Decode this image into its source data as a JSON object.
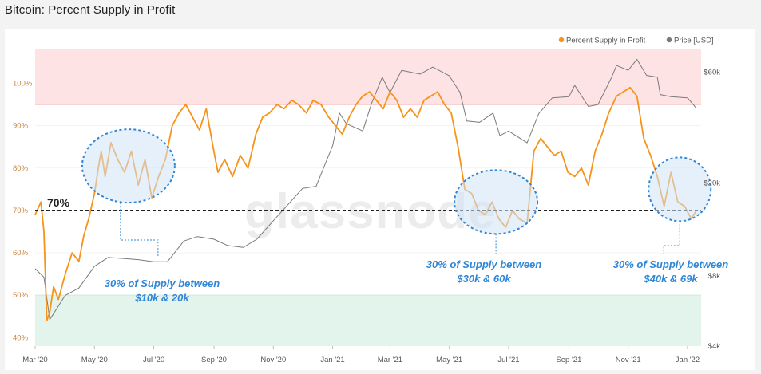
{
  "page": {
    "title": "Bitcoin: Percent Supply in Profit"
  },
  "watermark": "glassnode",
  "chart_data": {
    "type": "line",
    "x_range": [
      "2020-03-01",
      "2022-01-15"
    ],
    "x_ticks": [
      "Mar '20",
      "May '20",
      "Jul '20",
      "Sep '20",
      "Nov '20",
      "Jan '21",
      "Mar '21",
      "May '21",
      "Jul '21",
      "Sep '21",
      "Nov '21",
      "Jan '22"
    ],
    "y_left": {
      "range": [
        38,
        108
      ],
      "ticks": [
        "40%",
        "50%",
        "60%",
        "70%",
        "80%",
        "90%",
        "100%"
      ],
      "tick_values": [
        40,
        50,
        60,
        70,
        80,
        90,
        100
      ]
    },
    "y_right": {
      "scale": "log",
      "range": [
        4000,
        75000
      ],
      "ticks": [
        "$4k",
        "$8k",
        "$20k",
        "$60k"
      ],
      "tick_values": [
        4000,
        8000,
        20000,
        60000
      ]
    },
    "legend": {
      "placement": "top-right"
    },
    "series": [
      {
        "name": "Percent Supply in Profit",
        "color": "#f7931a",
        "axis": "left",
        "x": [
          "2020-03-01",
          "2020-03-07",
          "2020-03-10",
          "2020-03-13",
          "2020-03-16",
          "2020-03-20",
          "2020-03-25",
          "2020-04-01",
          "2020-04-08",
          "2020-04-15",
          "2020-04-20",
          "2020-04-25",
          "2020-05-01",
          "2020-05-05",
          "2020-05-08",
          "2020-05-12",
          "2020-05-18",
          "2020-05-25",
          "2020-06-01",
          "2020-06-08",
          "2020-06-15",
          "2020-06-22",
          "2020-06-29",
          "2020-07-06",
          "2020-07-13",
          "2020-07-20",
          "2020-07-27",
          "2020-08-03",
          "2020-08-10",
          "2020-08-17",
          "2020-08-24",
          "2020-08-31",
          "2020-09-05",
          "2020-09-12",
          "2020-09-20",
          "2020-09-28",
          "2020-10-06",
          "2020-10-14",
          "2020-10-21",
          "2020-10-28",
          "2020-11-05",
          "2020-11-12",
          "2020-11-20",
          "2020-11-27",
          "2020-12-05",
          "2020-12-12",
          "2020-12-20",
          "2020-12-28",
          "2021-01-04",
          "2021-01-11",
          "2021-01-18",
          "2021-01-25",
          "2021-02-01",
          "2021-02-08",
          "2021-02-15",
          "2021-02-22",
          "2021-03-01",
          "2021-03-08",
          "2021-03-15",
          "2021-03-22",
          "2021-03-29",
          "2021-04-05",
          "2021-04-12",
          "2021-04-19",
          "2021-04-26",
          "2021-05-03",
          "2021-05-10",
          "2021-05-17",
          "2021-05-24",
          "2021-05-31",
          "2021-06-07",
          "2021-06-14",
          "2021-06-21",
          "2021-06-28",
          "2021-07-05",
          "2021-07-12",
          "2021-07-20",
          "2021-07-27",
          "2021-08-03",
          "2021-08-10",
          "2021-08-17",
          "2021-08-24",
          "2021-08-31",
          "2021-09-07",
          "2021-09-14",
          "2021-09-21",
          "2021-09-28",
          "2021-10-05",
          "2021-10-12",
          "2021-10-20",
          "2021-10-27",
          "2021-11-03",
          "2021-11-10",
          "2021-11-17",
          "2021-11-24",
          "2021-12-01",
          "2021-12-08",
          "2021-12-15",
          "2021-12-22",
          "2021-12-29",
          "2022-01-05",
          "2022-01-10"
        ],
        "values": [
          69,
          72,
          65,
          44,
          46,
          52,
          49,
          55,
          60,
          58,
          64,
          68,
          74,
          80,
          84,
          78,
          86,
          82,
          79,
          84,
          76,
          82,
          73,
          78,
          82,
          90,
          93,
          95,
          92,
          89,
          94,
          85,
          79,
          82,
          78,
          83,
          80,
          88,
          92,
          93,
          95,
          94,
          96,
          95,
          93,
          96,
          95,
          92,
          90,
          88,
          92,
          95,
          97,
          98,
          96,
          94,
          98,
          96,
          92,
          94,
          92,
          96,
          97,
          98,
          95,
          93,
          85,
          75,
          74,
          70,
          69,
          72,
          68,
          66,
          70,
          68,
          67,
          84,
          87,
          85,
          83,
          84,
          79,
          78,
          80,
          76,
          84,
          88,
          93,
          97,
          98,
          99,
          97,
          87,
          83,
          78,
          71,
          79,
          72,
          71,
          68,
          70
        ]
      },
      {
        "name": "Price [USD]",
        "color": "#7a7a7a",
        "axis": "right",
        "x": [
          "2020-03-01",
          "2020-03-10",
          "2020-03-16",
          "2020-04-01",
          "2020-04-15",
          "2020-05-01",
          "2020-05-15",
          "2020-06-01",
          "2020-06-15",
          "2020-07-01",
          "2020-07-15",
          "2020-08-01",
          "2020-08-15",
          "2020-09-01",
          "2020-09-15",
          "2020-10-01",
          "2020-10-15",
          "2020-11-01",
          "2020-11-15",
          "2020-12-01",
          "2020-12-15",
          "2021-01-01",
          "2021-01-08",
          "2021-01-15",
          "2021-02-01",
          "2021-02-10",
          "2021-02-21",
          "2021-03-01",
          "2021-03-13",
          "2021-04-01",
          "2021-04-14",
          "2021-05-01",
          "2021-05-12",
          "2021-05-19",
          "2021-06-01",
          "2021-06-15",
          "2021-06-22",
          "2021-07-01",
          "2021-07-20",
          "2021-08-01",
          "2021-08-15",
          "2021-09-01",
          "2021-09-07",
          "2021-09-21",
          "2021-10-01",
          "2021-10-15",
          "2021-10-20",
          "2021-11-01",
          "2021-11-10",
          "2021-11-20",
          "2021-12-01",
          "2021-12-04",
          "2021-12-15",
          "2022-01-01",
          "2022-01-10"
        ],
        "values": [
          8600,
          7900,
          5200,
          6600,
          7100,
          8800,
          9600,
          9500,
          9400,
          9200,
          9200,
          11300,
          11800,
          11500,
          10800,
          10600,
          11500,
          13800,
          16000,
          19000,
          19400,
          29000,
          40000,
          36000,
          33500,
          44000,
          57000,
          49000,
          61000,
          58800,
          63000,
          57800,
          49000,
          37000,
          36500,
          40000,
          32000,
          33500,
          29800,
          39800,
          46500,
          47000,
          52600,
          42700,
          43500,
          57000,
          64000,
          61000,
          68000,
          58000,
          57000,
          48000,
          47000,
          46500,
          42000
        ]
      }
    ],
    "bands": [
      {
        "label": "",
        "range": [
          95,
          108
        ],
        "color": "#fde3e3"
      },
      {
        "label": "",
        "range": [
          38,
          50
        ],
        "color": "#e3f4ec"
      }
    ],
    "reference_line": {
      "value": 70,
      "label": "70%"
    },
    "annotations": [
      {
        "line1": "30% of Supply between",
        "line2": "$10k & 20k"
      },
      {
        "line1": "30% of Supply between",
        "line2": "$30k & 60k"
      },
      {
        "line1": "30% of Supply between",
        "line2": "$40k & 69k"
      }
    ]
  }
}
